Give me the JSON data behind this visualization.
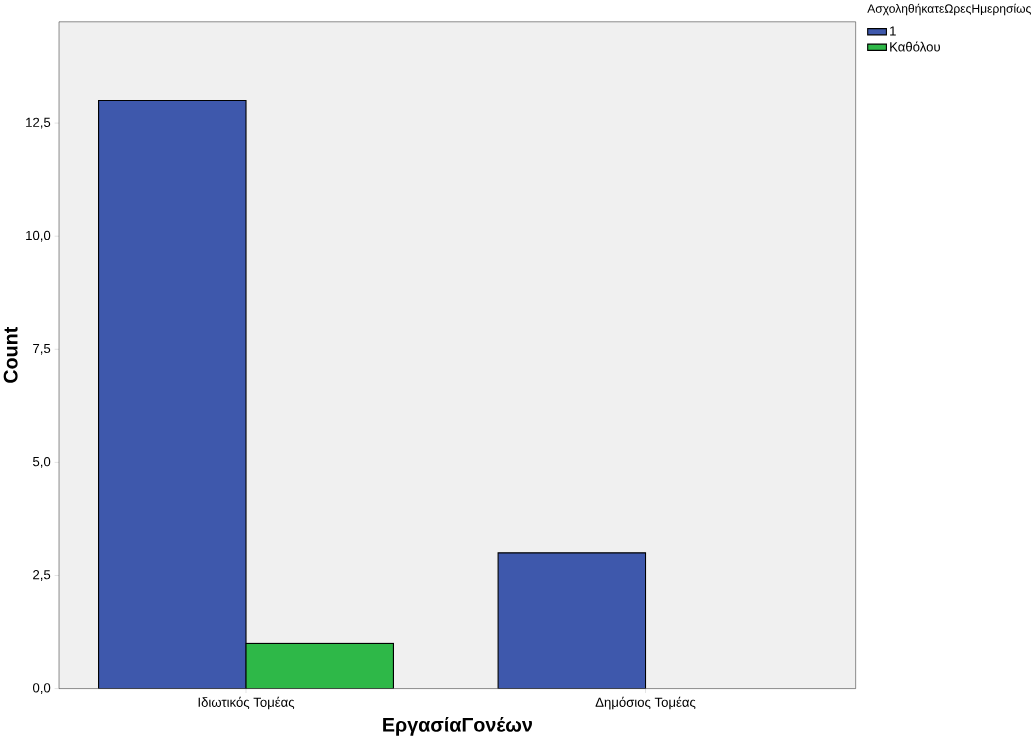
{
  "chart_data": {
    "type": "bar",
    "xlabel": "ΕργασίαΓονέων",
    "ylabel": "Count",
    "legend_title": "ΑσχοληθήκατεΩρεςΗμερησίως",
    "categories": [
      "Ιδιωτικός Τομέας",
      "Δημόσιος Τομέας"
    ],
    "series": [
      {
        "name": "1",
        "color": "#3e58ac",
        "values": [
          13,
          3
        ]
      },
      {
        "name": "Καθόλου",
        "color": "#2eb848",
        "values": [
          1,
          null
        ]
      }
    ],
    "ylim": [
      0,
      14.74
    ],
    "yticks": [
      {
        "value": 0,
        "label": "0,0"
      },
      {
        "value": 2.5,
        "label": "2,5"
      },
      {
        "value": 5,
        "label": "5,0"
      },
      {
        "value": 7.5,
        "label": "7,5"
      },
      {
        "value": 10,
        "label": "10,0"
      },
      {
        "value": 12.5,
        "label": "12,5"
      }
    ],
    "grid": false,
    "legend": "top right"
  }
}
